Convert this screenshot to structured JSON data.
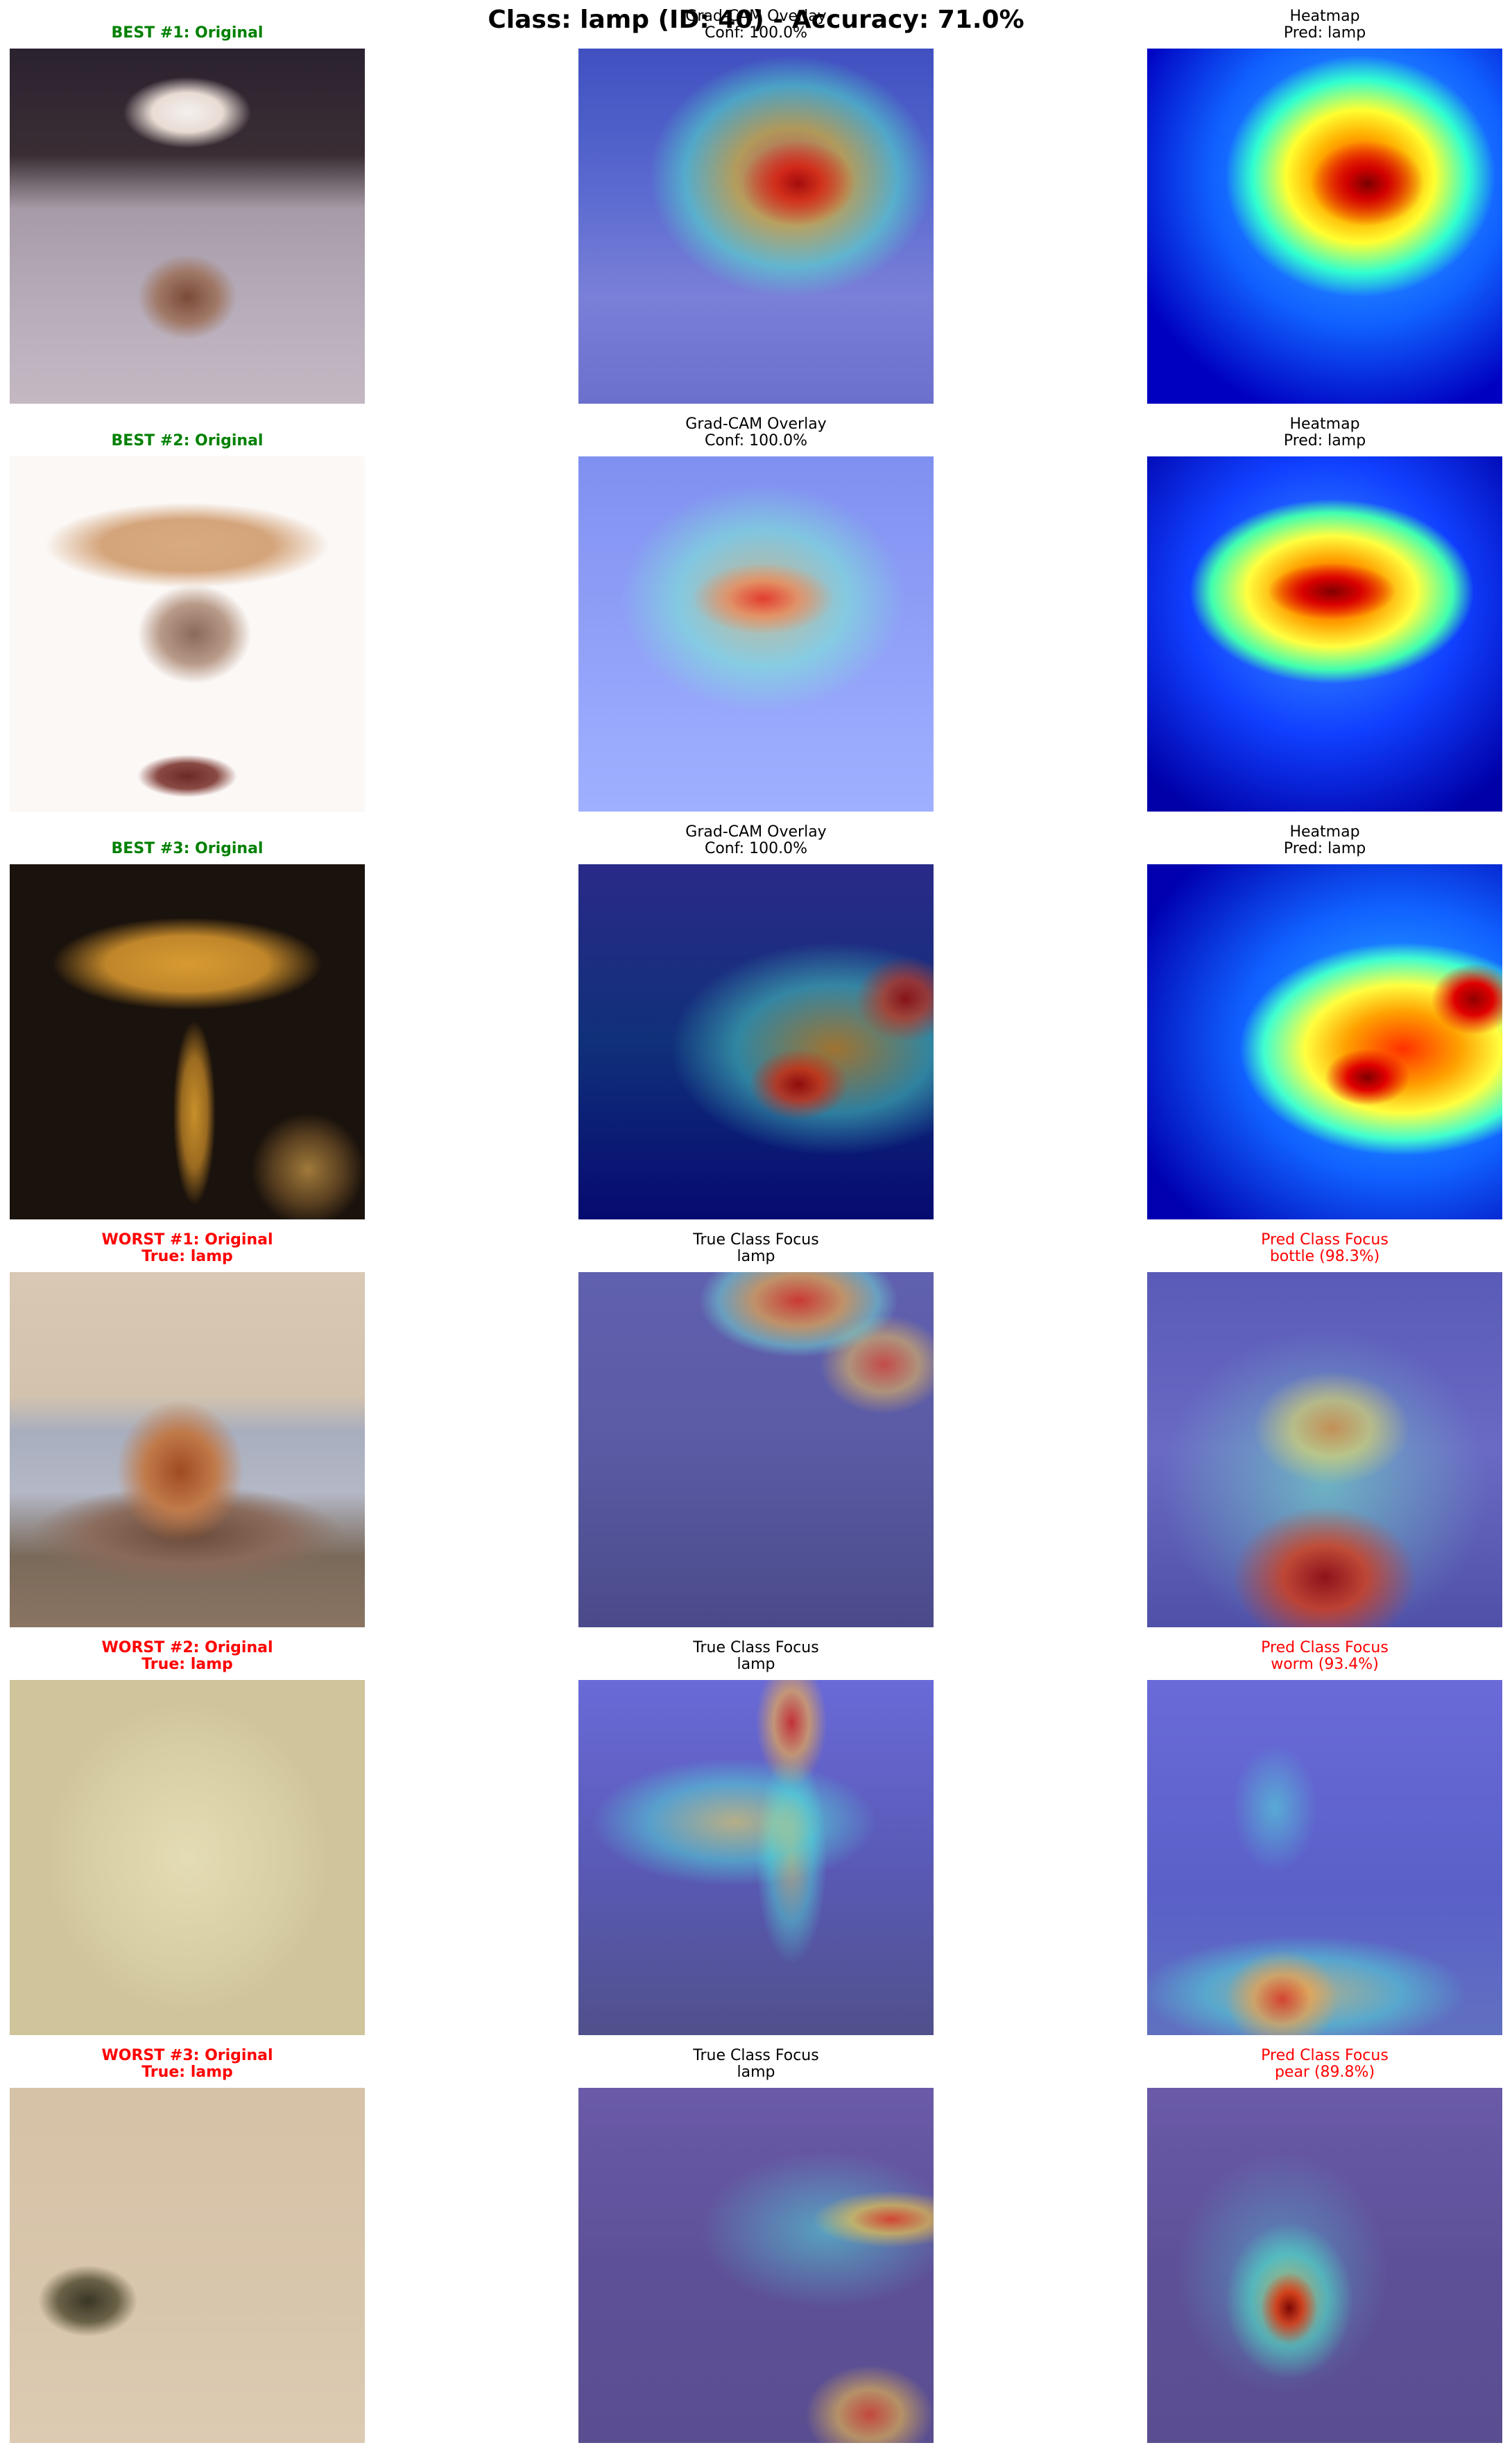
{
  "title": "Class: lamp (ID: 40) - Accuracy: 71.0%",
  "rows": [
    {
      "col1_title": [
        "BEST #1: Original"
      ],
      "col2_title": [
        "Grad-CAM Overlay",
        "Conf: 100.0%"
      ],
      "col3_title": [
        "Heatmap",
        "Pred: lamp"
      ]
    },
    {
      "col1_title": [
        "BEST #2: Original"
      ],
      "col2_title": [
        "Grad-CAM Overlay",
        "Conf: 100.0%"
      ],
      "col3_title": [
        "Heatmap",
        "Pred: lamp"
      ]
    },
    {
      "col1_title": [
        "BEST #3: Original"
      ],
      "col2_title": [
        "Grad-CAM Overlay",
        "Conf: 100.0%"
      ],
      "col3_title": [
        "Heatmap",
        "Pred: lamp"
      ]
    },
    {
      "col1_title": [
        "WORST #1: Original",
        "True: lamp"
      ],
      "col2_title": [
        "True Class Focus",
        "lamp"
      ],
      "col3_title": [
        "Pred Class Focus",
        "bottle (98.3%)"
      ]
    },
    {
      "col1_title": [
        "WORST #2: Original",
        "True: lamp"
      ],
      "col2_title": [
        "True Class Focus",
        "lamp"
      ],
      "col3_title": [
        "Pred Class Focus",
        "worm (93.4%)"
      ]
    },
    {
      "col1_title": [
        "WORST #3: Original",
        "True: lamp"
      ],
      "col2_title": [
        "True Class Focus",
        "lamp"
      ],
      "col3_title": [
        "Pred Class Focus",
        "pear (89.8%)"
      ]
    }
  ],
  "colors": {
    "best_title": "#008000",
    "worst_title": "#ff0000",
    "pred_focus_title": "#ff0000"
  }
}
